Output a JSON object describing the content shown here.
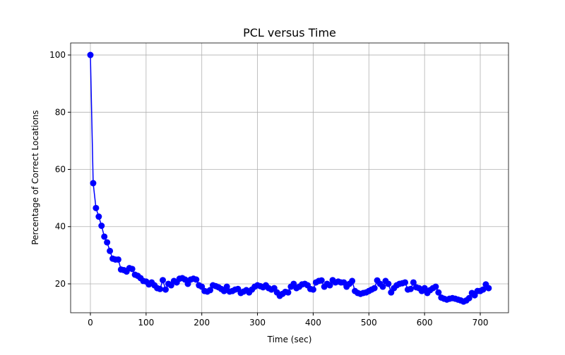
{
  "chart_data": {
    "type": "line",
    "title": "PCL versus Time",
    "x_label": "Time (sec)",
    "y_label": "Percentage of Correct Locations",
    "x": [
      0,
      5,
      10,
      15,
      20,
      25,
      30,
      35,
      40,
      45,
      50,
      55,
      60,
      65,
      70,
      75,
      80,
      85,
      90,
      95,
      100,
      105,
      110,
      115,
      120,
      125,
      130,
      135,
      140,
      145,
      150,
      155,
      160,
      165,
      170,
      175,
      180,
      185,
      190,
      195,
      200,
      205,
      210,
      215,
      220,
      225,
      230,
      235,
      240,
      245,
      250,
      255,
      260,
      265,
      270,
      275,
      280,
      285,
      290,
      295,
      300,
      305,
      310,
      315,
      320,
      325,
      330,
      335,
      340,
      345,
      350,
      355,
      360,
      365,
      370,
      375,
      380,
      385,
      390,
      395,
      400,
      405,
      410,
      415,
      420,
      425,
      430,
      435,
      440,
      445,
      450,
      455,
      460,
      465,
      470,
      475,
      480,
      485,
      490,
      495,
      500,
      505,
      510,
      515,
      520,
      525,
      530,
      535,
      540,
      545,
      550,
      555,
      560,
      565,
      570,
      575,
      580,
      585,
      590,
      595,
      600,
      605,
      610,
      615,
      620,
      625,
      630,
      635,
      640,
      645,
      650,
      655,
      660,
      665,
      670,
      675,
      680,
      685,
      690,
      695,
      700,
      705,
      710,
      715
    ],
    "series": [
      {
        "name": "PCL",
        "color": "#0000ff",
        "values": [
          100,
          55.2,
          46.5,
          43.5,
          40.3,
          36.5,
          34.5,
          31.5,
          28.8,
          28.5,
          28.5,
          25,
          24.8,
          24.3,
          25.5,
          25.2,
          23.2,
          22.8,
          22,
          21,
          20.8,
          19.8,
          20.5,
          19.5,
          18.5,
          18.2,
          21.3,
          18,
          20,
          19.5,
          21,
          20.5,
          21.8,
          22,
          21.5,
          20,
          21.5,
          21.8,
          21.5,
          19.5,
          19,
          17.5,
          17.3,
          17.8,
          19.5,
          19.2,
          18.8,
          18.2,
          17.5,
          19,
          17.3,
          17.5,
          18,
          18.2,
          16.8,
          17.3,
          17.8,
          17,
          18,
          19,
          19.5,
          19.2,
          18.8,
          19.5,
          18.5,
          18,
          18.5,
          17,
          15.8,
          16.5,
          17.2,
          17,
          19,
          20,
          18.5,
          19,
          19.8,
          20,
          19.5,
          18.2,
          18,
          20.5,
          21,
          21.2,
          19,
          20,
          19.5,
          21.3,
          20.5,
          20.8,
          20.5,
          20.5,
          19,
          20,
          21,
          17.5,
          16.8,
          16.5,
          16.8,
          17,
          17.5,
          18,
          18.5,
          21.2,
          20,
          19,
          21,
          20,
          17,
          18.5,
          19.5,
          20,
          20.2,
          20.5,
          18,
          18.2,
          20.5,
          18.8,
          18.5,
          17.5,
          18.5,
          16.8,
          17.8,
          18.5,
          19,
          17,
          15.2,
          14.8,
          14.5,
          14.8,
          15,
          14.8,
          14.5,
          14.2,
          13.8,
          14.2,
          15,
          16.8,
          16,
          17.5,
          17.5,
          18,
          19.8,
          18.5
        ]
      }
    ],
    "xlim": [
      -35.5,
      750.7
    ],
    "ylim": [
      9.9,
      104.2
    ],
    "xticks": [
      0,
      100,
      200,
      300,
      400,
      500,
      600,
      700
    ],
    "yticks": [
      20,
      40,
      60,
      80,
      100
    ],
    "grid": true
  }
}
